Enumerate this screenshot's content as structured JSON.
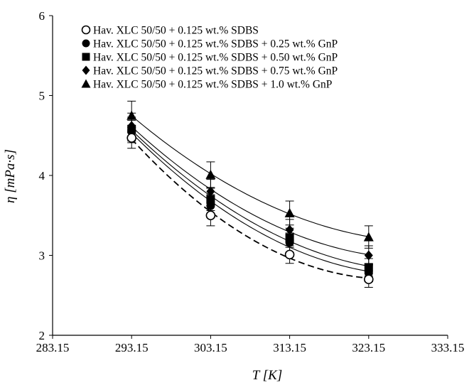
{
  "chart_data": {
    "type": "scatter",
    "xlabel": "T [K]",
    "ylabel": "η [mPa·s]",
    "xlim": [
      283.15,
      333.15
    ],
    "ylim": [
      2,
      6
    ],
    "x_ticks": [
      "283.15",
      "293.15",
      "303.15",
      "313.15",
      "323.15",
      "333.15"
    ],
    "y_ticks": [
      "2",
      "3",
      "4",
      "5",
      "6"
    ],
    "legend_position": "top-left",
    "grid": false,
    "x": [
      293.15,
      303.15,
      313.15,
      323.15
    ],
    "series": [
      {
        "name": "Hav. XLC 50/50 + 0.125 wt.% SDBS",
        "marker": "open-circle",
        "fit_line": "dashed",
        "values": [
          4.47,
          3.5,
          3.01,
          2.7
        ],
        "error": [
          0.13,
          0.13,
          0.11,
          0.1
        ]
      },
      {
        "name": "Hav. XLC 50/50 + 0.125 wt.% SDBS + 0.25 wt.% GnP",
        "marker": "filled-circle",
        "fit_line": "solid",
        "values": [
          4.55,
          3.62,
          3.16,
          2.78
        ],
        "error": [
          0.14,
          0.14,
          0.12,
          0.11
        ]
      },
      {
        "name": "Hav. XLC 50/50 + 0.125 wt.% SDBS + 0.50 wt.% GnP",
        "marker": "filled-square",
        "fit_line": "solid",
        "values": [
          4.58,
          3.7,
          3.22,
          2.85
        ],
        "error": [
          0.15,
          0.14,
          0.12,
          0.11
        ]
      },
      {
        "name": "Hav. XLC 50/50 + 0.125 wt.% SDBS + 0.75 wt.% GnP",
        "marker": "filled-diamond",
        "fit_line": "solid",
        "values": [
          4.62,
          3.8,
          3.32,
          3.0
        ],
        "error": [
          0.16,
          0.15,
          0.13,
          0.12
        ]
      },
      {
        "name": "Hav. XLC 50/50 + 0.125 wt.% SDBS + 1.0 wt.% GnP",
        "marker": "filled-triangle",
        "fit_line": "solid",
        "values": [
          4.75,
          4.01,
          3.53,
          3.23
        ],
        "error": [
          0.18,
          0.16,
          0.15,
          0.14
        ]
      }
    ]
  }
}
